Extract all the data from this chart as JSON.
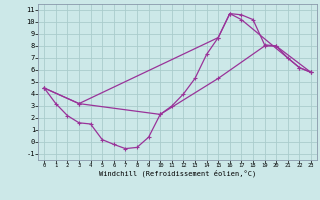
{
  "background_color": "#cce8e8",
  "grid_color": "#aacccc",
  "line_color": "#993399",
  "xlim": [
    -0.5,
    23.5
  ],
  "ylim": [
    -1.5,
    11.5
  ],
  "xtick_vals": [
    0,
    1,
    2,
    3,
    4,
    5,
    6,
    7,
    8,
    9,
    10,
    11,
    12,
    13,
    14,
    15,
    16,
    17,
    18,
    19,
    20,
    21,
    22,
    23
  ],
  "ytick_vals": [
    -1,
    0,
    1,
    2,
    3,
    4,
    5,
    6,
    7,
    8,
    9,
    10,
    11
  ],
  "xlabel": "Windchill (Refroidissement éolien,°C)",
  "line1_x": [
    0,
    1,
    2,
    3,
    4,
    5,
    6,
    7,
    8,
    9,
    10,
    11,
    12,
    13,
    14,
    15,
    16,
    17,
    18,
    19,
    20,
    21,
    22,
    23
  ],
  "line1_y": [
    4.5,
    3.2,
    2.2,
    1.6,
    1.5,
    0.2,
    -0.2,
    -0.55,
    -0.45,
    0.4,
    2.3,
    3.0,
    4.0,
    5.3,
    7.3,
    8.7,
    10.7,
    10.6,
    10.2,
    8.1,
    8.0,
    7.0,
    6.2,
    5.8
  ],
  "line2_x": [
    0,
    3,
    15,
    16,
    17,
    22,
    23
  ],
  "line2_y": [
    4.5,
    3.2,
    8.7,
    10.7,
    10.2,
    6.2,
    5.8
  ],
  "line3_x": [
    0,
    3,
    10,
    15,
    19,
    20,
    23
  ],
  "line3_y": [
    4.5,
    3.2,
    2.3,
    5.3,
    8.0,
    8.0,
    5.8
  ]
}
